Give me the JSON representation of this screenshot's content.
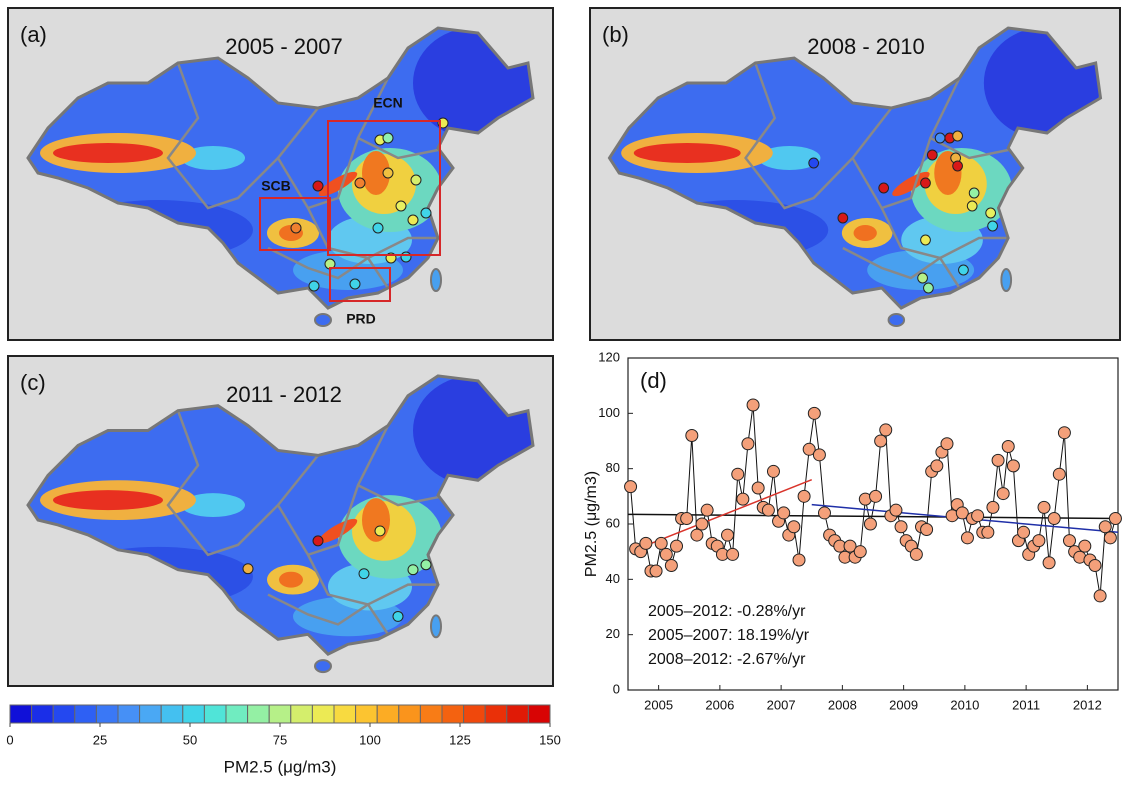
{
  "maps": [
    {
      "panel": "(a)",
      "title": "2005 - 2007",
      "regions": [
        "ECN",
        "SCB",
        "PRD"
      ]
    },
    {
      "panel": "(b)",
      "title": "2008 - 2010"
    },
    {
      "panel": "(c)",
      "title": "2011 - 2012"
    }
  ],
  "colorbar": {
    "label": "PM2.5 (μg/m3)",
    "lim": [
      0,
      150
    ],
    "ticks": [
      0,
      25,
      50,
      75,
      100,
      125,
      150
    ],
    "colors": [
      "#1010d8",
      "#1a2ee8",
      "#2448f0",
      "#2e60f4",
      "#3a78f6",
      "#4690f6",
      "#4aa8f4",
      "#44c0f0",
      "#40d4e8",
      "#50e4d8",
      "#70ecc0",
      "#94f0a4",
      "#b6f088",
      "#d4ee6c",
      "#ecea54",
      "#f8da40",
      "#fcc430",
      "#fcac24",
      "#fa941c",
      "#f87c16",
      "#f46210",
      "#f0480c",
      "#ea3008",
      "#e01a06",
      "#d80404"
    ]
  },
  "chart_data": {
    "type": "line",
    "panel": "(d)",
    "y_label": "PM2.5 (μg/m3)",
    "xlim": [
      2005,
      2013
    ],
    "xticks": [
      {
        "value": 2005.5,
        "label": "2005"
      },
      {
        "value": 2006.5,
        "label": "2006"
      },
      {
        "value": 2007.5,
        "label": "2007"
      },
      {
        "value": 2008.5,
        "label": "2008"
      },
      {
        "value": 2009.5,
        "label": "2009"
      },
      {
        "value": 2010.5,
        "label": "2010"
      },
      {
        "value": 2011.5,
        "label": "2011"
      },
      {
        "value": 2012.5,
        "label": "2012"
      }
    ],
    "ylim": [
      0,
      120
    ],
    "yticks": [
      0,
      20,
      40,
      60,
      80,
      100,
      120
    ],
    "series": [
      {
        "color": "#f4a07a",
        "x": [
          2005.042,
          2005.125,
          2005.208,
          2005.292,
          2005.375,
          2005.458,
          2005.542,
          2005.625,
          2005.708,
          2005.792,
          2005.875,
          2005.958,
          2006.042,
          2006.125,
          2006.208,
          2006.292,
          2006.375,
          2006.458,
          2006.542,
          2006.625,
          2006.708,
          2006.792,
          2006.875,
          2006.958,
          2007.042,
          2007.125,
          2007.208,
          2007.292,
          2007.375,
          2007.458,
          2007.542,
          2007.625,
          2007.708,
          2007.792,
          2007.875,
          2007.958,
          2008.042,
          2008.125,
          2008.208,
          2008.292,
          2008.375,
          2008.458,
          2008.542,
          2008.625,
          2008.708,
          2008.792,
          2008.875,
          2008.958,
          2009.042,
          2009.125,
          2009.208,
          2009.292,
          2009.375,
          2009.458,
          2009.542,
          2009.625,
          2009.708,
          2009.792,
          2009.875,
          2009.958,
          2010.042,
          2010.125,
          2010.208,
          2010.292,
          2010.375,
          2010.458,
          2010.542,
          2010.625,
          2010.708,
          2010.792,
          2010.875,
          2010.958,
          2011.042,
          2011.125,
          2011.208,
          2011.292,
          2011.375,
          2011.458,
          2011.542,
          2011.625,
          2011.708,
          2011.792,
          2011.875,
          2011.958,
          2012.042,
          2012.125,
          2012.208,
          2012.292,
          2012.375,
          2012.458,
          2012.542,
          2012.625,
          2012.708,
          2012.792,
          2012.875,
          2012.958
        ],
        "values": [
          73.5,
          51,
          50,
          53,
          43,
          43,
          53,
          49,
          45,
          52,
          62,
          62,
          92,
          56,
          60,
          65,
          53,
          52,
          49,
          56,
          49,
          78,
          69,
          89,
          103,
          73,
          66,
          65,
          79,
          61,
          64,
          56,
          59,
          47,
          70,
          87,
          100,
          85,
          64,
          56,
          54,
          52,
          48,
          52,
          48,
          50,
          69,
          60,
          70,
          90,
          94,
          63,
          65,
          59,
          54,
          52,
          49,
          59,
          58,
          79,
          81,
          86,
          89,
          63,
          67,
          64,
          55,
          62,
          63,
          57,
          57,
          66,
          83,
          71,
          88,
          81,
          54,
          57,
          49,
          52,
          54,
          66,
          46,
          62,
          78,
          93,
          54,
          50,
          48,
          52,
          47,
          45,
          34,
          59,
          55,
          62
        ]
      }
    ],
    "trend_lines": [
      {
        "label": "2005–2012: -0.28%/yr",
        "color": "#111111",
        "x": [
          2005,
          2013
        ],
        "values": [
          63.5,
          62
        ]
      },
      {
        "label": "2005–2007: 18.19%/yr",
        "color": "#d9342b",
        "x": [
          2005.04,
          2008
        ],
        "values": [
          50,
          76
        ]
      },
      {
        "label": "2008–2012: -2.67%/yr",
        "color": "#1f2fa8",
        "x": [
          2008,
          2013
        ],
        "values": [
          67,
          57
        ]
      }
    ]
  }
}
